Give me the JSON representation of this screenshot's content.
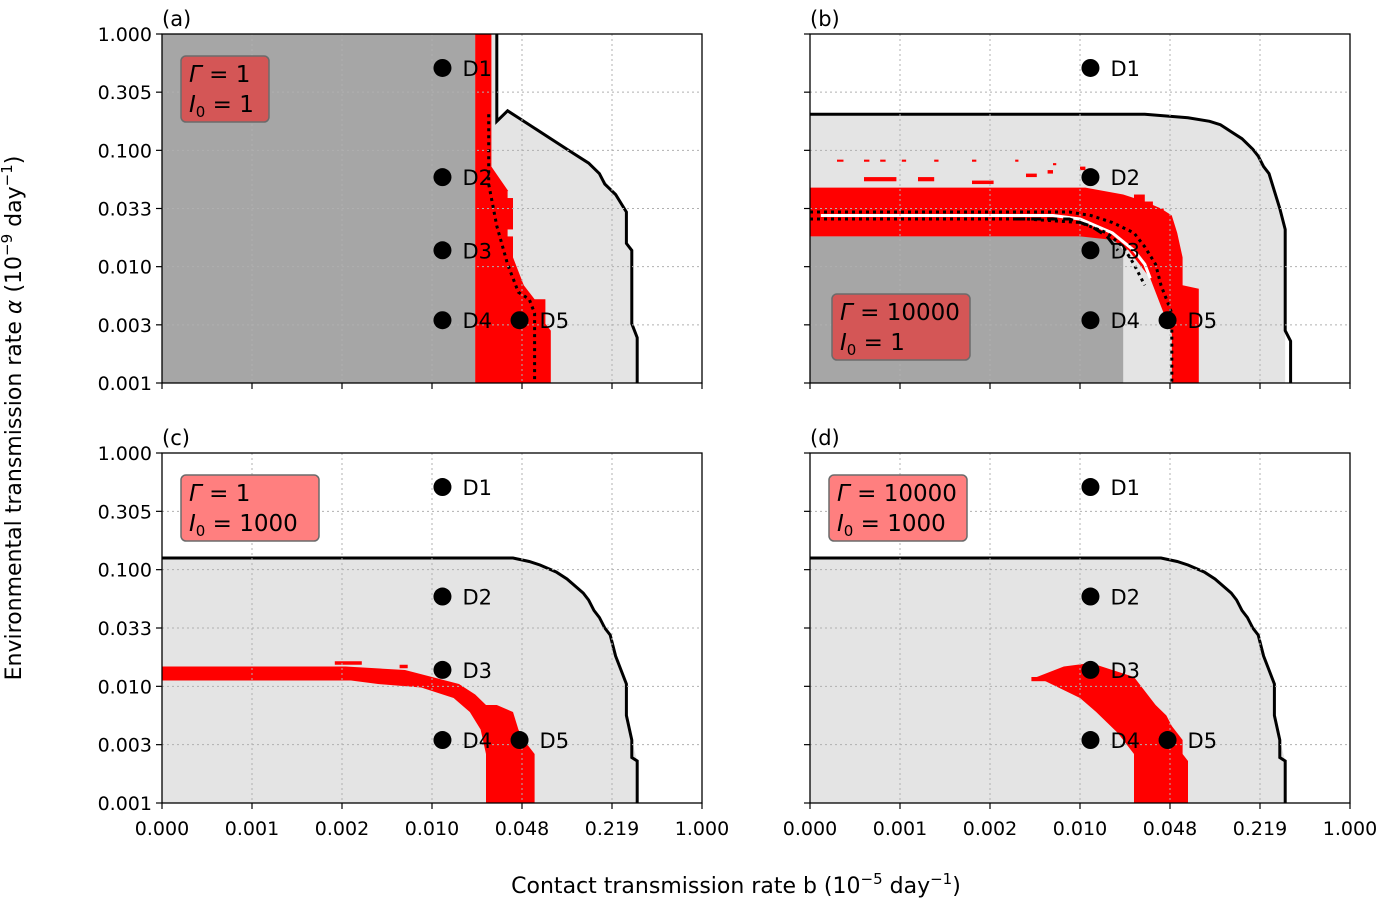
{
  "figure": {
    "xlabel_text": "Contact transmission rate b (10",
    "xlabel_exp": "−5",
    "xlabel_unit": " day",
    "xlabel_unit_exp": "−1",
    "xlabel_close": ")",
    "ylabel_text": "Environmental transmission rate ",
    "ylabel_symbol": "α",
    "ylabel_open": " (10",
    "ylabel_exp": "−9",
    "ylabel_unit": " day",
    "ylabel_unit_exp": "−1",
    "ylabel_close": ")"
  },
  "colors": {
    "dark_region": "#a6a6a6",
    "light_region": "#e4e4e4",
    "red_band": "#ff0000",
    "boundary": "#000000",
    "box_dark": "#d45656",
    "box_light": "#ff7f7f"
  },
  "chart_data": [
    {
      "type": "heatmap",
      "panel_label": "(a)",
      "annotation": {
        "gamma_sym": "Γ",
        "gamma_val": " = 1",
        "i0_sym": "I",
        "i0_sub": "0",
        "i0_val": " = 1",
        "style": "dark"
      },
      "xticks": [
        "0.000",
        "0.001",
        "0.002",
        "0.010",
        "0.048",
        "0.219",
        "1.000"
      ],
      "yticks": [
        "1.000",
        "0.305",
        "0.100",
        "0.033",
        "0.010",
        "0.003",
        "0.001"
      ],
      "show_xticks": false,
      "show_yticks": true,
      "dark_region": true,
      "points": [
        {
          "label": "D1",
          "b": 0.012,
          "alpha": 0.5
        },
        {
          "label": "D2",
          "b": 0.012,
          "alpha": 0.06
        },
        {
          "label": "D3",
          "b": 0.012,
          "alpha": 0.014
        },
        {
          "label": "D4",
          "b": 0.012,
          "alpha": 0.0033
        },
        {
          "label": "D5",
          "b": 0.046,
          "alpha": 0.0033
        }
      ],
      "grid": true
    },
    {
      "type": "heatmap",
      "panel_label": "(b)",
      "annotation": {
        "gamma_sym": "Γ",
        "gamma_val": " = 10000",
        "i0_sym": "I",
        "i0_sub": "0",
        "i0_val": " = 1",
        "style": "dark"
      },
      "xticks": [
        "0.000",
        "0.001",
        "0.002",
        "0.010",
        "0.048",
        "0.219",
        "1.000"
      ],
      "yticks": [
        "1.000",
        "0.305",
        "0.100",
        "0.033",
        "0.010",
        "0.003",
        "0.001"
      ],
      "show_xticks": false,
      "show_yticks": false,
      "dark_region": true,
      "points": [
        {
          "label": "D1",
          "b": 0.012,
          "alpha": 0.5
        },
        {
          "label": "D2",
          "b": 0.012,
          "alpha": 0.06
        },
        {
          "label": "D3",
          "b": 0.012,
          "alpha": 0.014
        },
        {
          "label": "D4",
          "b": 0.012,
          "alpha": 0.0033
        },
        {
          "label": "D5",
          "b": 0.046,
          "alpha": 0.0033
        }
      ],
      "grid": true
    },
    {
      "type": "heatmap",
      "panel_label": "(c)",
      "annotation": {
        "gamma_sym": "Γ",
        "gamma_val": " = 1",
        "i0_sym": "I",
        "i0_sub": "0",
        "i0_val": " = 1000",
        "style": "light"
      },
      "xticks": [
        "0.000",
        "0.001",
        "0.002",
        "0.010",
        "0.048",
        "0.219",
        "1.000"
      ],
      "yticks": [
        "1.000",
        "0.305",
        "0.100",
        "0.033",
        "0.010",
        "0.003",
        "0.001"
      ],
      "show_xticks": true,
      "show_yticks": true,
      "dark_region": false,
      "points": [
        {
          "label": "D1",
          "b": 0.012,
          "alpha": 0.5
        },
        {
          "label": "D2",
          "b": 0.012,
          "alpha": 0.06
        },
        {
          "label": "D3",
          "b": 0.012,
          "alpha": 0.014
        },
        {
          "label": "D4",
          "b": 0.012,
          "alpha": 0.0033
        },
        {
          "label": "D5",
          "b": 0.046,
          "alpha": 0.0033
        }
      ],
      "grid": true
    },
    {
      "type": "heatmap",
      "panel_label": "(d)",
      "annotation": {
        "gamma_sym": "Γ",
        "gamma_val": " = 10000",
        "i0_sym": "I",
        "i0_sub": "0",
        "i0_val": " = 1000",
        "style": "light"
      },
      "xticks": [
        "0.000",
        "0.001",
        "0.002",
        "0.010",
        "0.048",
        "0.219",
        "1.000"
      ],
      "yticks": [
        "1.000",
        "0.305",
        "0.100",
        "0.033",
        "0.010",
        "0.003",
        "0.001"
      ],
      "show_xticks": true,
      "show_yticks": false,
      "dark_region": false,
      "points": [
        {
          "label": "D1",
          "b": 0.012,
          "alpha": 0.5
        },
        {
          "label": "D2",
          "b": 0.012,
          "alpha": 0.06
        },
        {
          "label": "D3",
          "b": 0.012,
          "alpha": 0.014
        },
        {
          "label": "D4",
          "b": 0.012,
          "alpha": 0.0033
        },
        {
          "label": "D5",
          "b": 0.046,
          "alpha": 0.0033
        }
      ],
      "grid": true
    }
  ]
}
